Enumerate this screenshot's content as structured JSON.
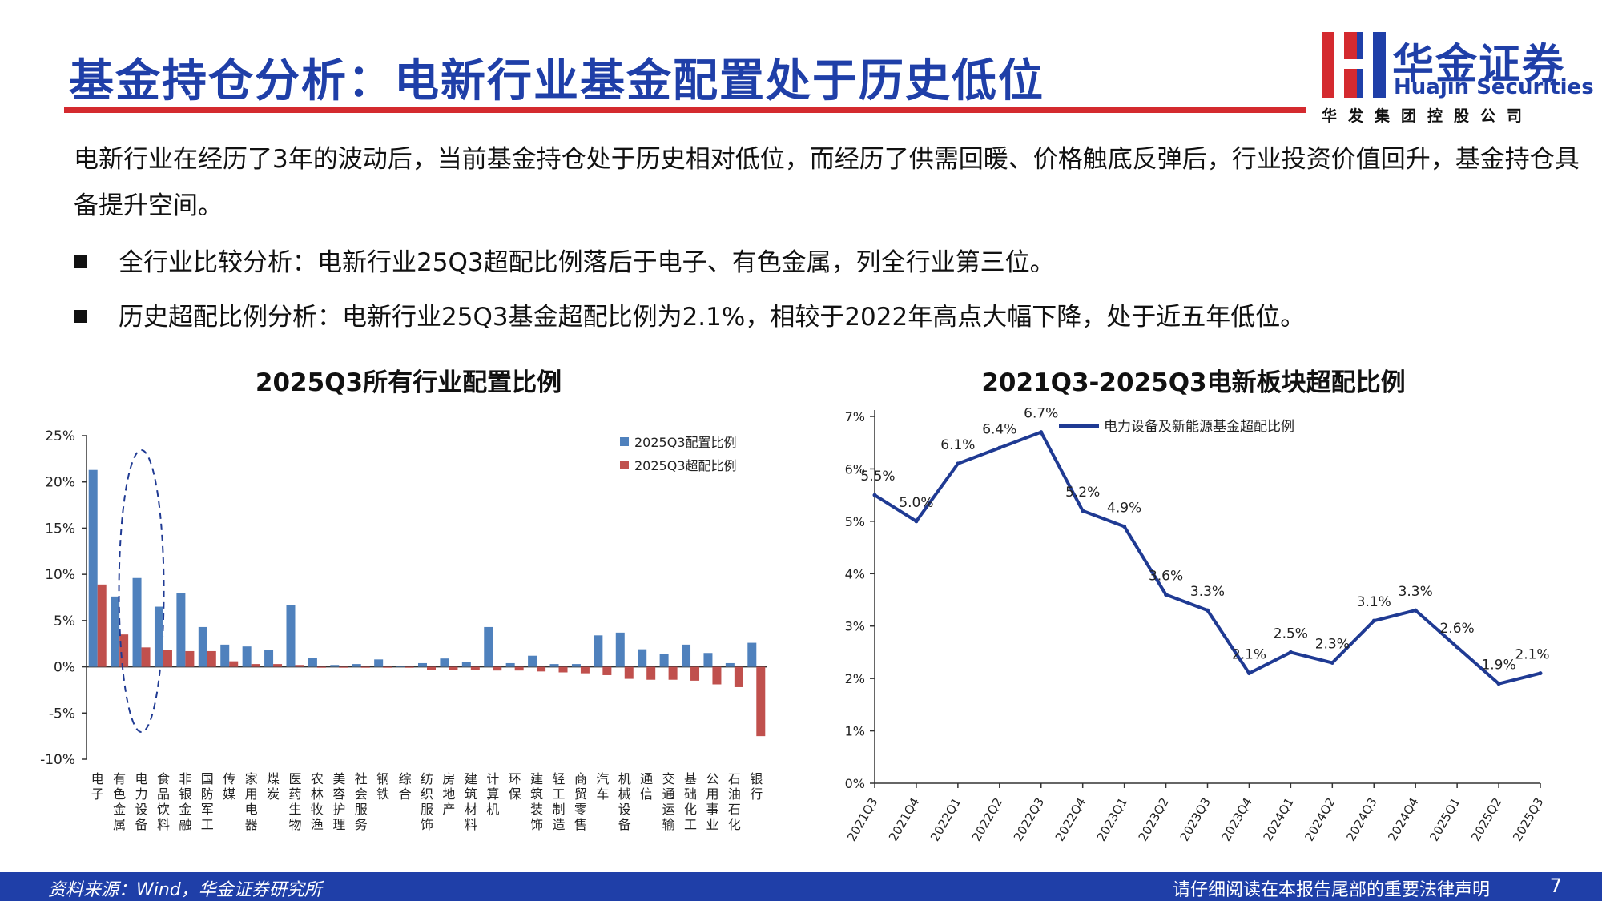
{
  "header": {
    "title": "基金持仓分析：电新行业基金配置处于历史低位",
    "logo_cn": "华金证券",
    "logo_en": "Huajin Securities",
    "logo_sub": "华发集团控股公司"
  },
  "body": {
    "paragraph": "电新行业在经历了3年的波动后，当前基金持仓处于历史相对低位，而经历了供需回暖、价格触底反弹后，行业投资价值回升，基金持仓具备提升空间。",
    "bullet1": "全行业比较分析：电新行业25Q3超配比例落后于电子、有色金属，列全行业第三位。",
    "bullet2": "历史超配比例分析：电新行业25Q3基金超配比例为2.1%，相较于2022年高点大幅下降，处于近五年低位。"
  },
  "colors": {
    "blue_series": "#4f81bd",
    "red_series": "#c0504d",
    "line_series": "#1f3a93",
    "brand_blue": "#1f3fa8",
    "brand_red": "#d42a2f"
  },
  "chart_data": [
    {
      "type": "bar",
      "title": "2025Q3所有行业配置比例",
      "categories": [
        "电子",
        "有色金属",
        "电力设备",
        "食品饮料",
        "非银金融",
        "国防军工",
        "传媒",
        "家用电器",
        "煤炭",
        "医药生物",
        "农林牧渔",
        "美容护理",
        "社会服务",
        "钢铁",
        "综合",
        "纺织服饰",
        "房地产",
        "建筑材料",
        "计算机",
        "环保",
        "建筑装饰",
        "轻工制造",
        "商贸零售",
        "汽车",
        "机械设备",
        "通信",
        "交通运输",
        "基础化工",
        "公用事业",
        "石油石化",
        "银行"
      ],
      "series": [
        {
          "name": "2025Q3配置比例",
          "values": [
            21.3,
            7.6,
            9.6,
            6.5,
            8.0,
            4.3,
            2.4,
            2.2,
            1.8,
            6.7,
            1.0,
            0.2,
            0.3,
            0.8,
            0.1,
            0.4,
            0.9,
            0.5,
            4.3,
            0.4,
            1.2,
            0.3,
            0.3,
            3.4,
            3.7,
            1.9,
            1.4,
            2.4,
            1.5,
            0.4,
            2.6
          ]
        },
        {
          "name": "2025Q3超配比例",
          "values": [
            8.9,
            3.5,
            2.1,
            1.8,
            1.7,
            1.7,
            0.6,
            0.3,
            0.3,
            0.2,
            -0.1,
            -0.1,
            -0.1,
            -0.1,
            -0.1,
            -0.3,
            -0.3,
            -0.3,
            -0.4,
            -0.4,
            -0.5,
            -0.6,
            -0.7,
            -0.9,
            -1.3,
            -1.4,
            -1.4,
            -1.5,
            -1.9,
            -2.2,
            -7.5
          ]
        }
      ],
      "yticks": [
        "25%",
        "20%",
        "15%",
        "10%",
        "5%",
        "0%",
        "-5%",
        "-10%"
      ],
      "ylim": [
        -10,
        25
      ],
      "grid": false,
      "legend": "top-right",
      "highlight": "电力设备"
    },
    {
      "type": "line",
      "title": "2021Q3-2025Q3电新板块超配比例",
      "x": [
        "2021Q3",
        "2021Q4",
        "2022Q1",
        "2022Q2",
        "2022Q3",
        "2022Q4",
        "2023Q1",
        "2023Q2",
        "2023Q3",
        "2023Q4",
        "2024Q1",
        "2024Q2",
        "2024Q3",
        "2024Q4",
        "2025Q1",
        "2025Q2",
        "2025Q3"
      ],
      "series": [
        {
          "name": "电力设备及新能源基金超配比例",
          "values": [
            5.5,
            5.0,
            6.1,
            6.4,
            6.7,
            5.2,
            4.9,
            3.6,
            3.3,
            2.1,
            2.5,
            2.3,
            3.1,
            3.3,
            2.6,
            1.9,
            2.1
          ]
        }
      ],
      "data_labels": [
        "5.5%",
        "5.0%",
        "6.1%",
        "6.4%",
        "6.7%",
        "5.2%",
        "4.9%",
        "3.6%",
        "3.3%",
        "2.1%",
        "2.5%",
        "2.3%",
        "3.1%",
        "3.3%",
        "2.6%",
        "1.9%",
        "2.1%"
      ],
      "yticks": [
        "7%",
        "6%",
        "5%",
        "4%",
        "3%",
        "2%",
        "1%",
        "0%"
      ],
      "ylim": [
        0,
        7
      ],
      "grid": false,
      "legend": "top-right"
    }
  ],
  "footer": {
    "source": "资料来源：Wind，华金证券研究所",
    "legal": "请仔细阅读在本报告尾部的重要法律声明",
    "page": "7"
  }
}
